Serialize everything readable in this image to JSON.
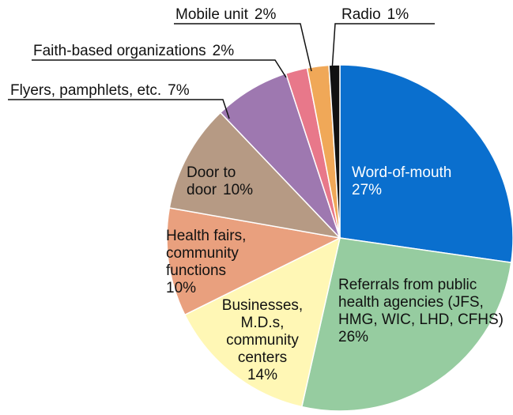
{
  "chart_data": {
    "type": "pie",
    "categories": [
      "Word-of-mouth",
      "Referrals from public health agencies (JFS, HMG, WIC, LHD, CFHS)",
      "Businesses, M.D.s, community centers",
      "Health fairs, community functions",
      "Door to door",
      "Flyers, pamphlets, etc.",
      "Faith-based organizations",
      "Mobile unit",
      "Radio"
    ],
    "values": [
      27,
      26,
      14,
      10,
      10,
      7,
      2,
      2,
      1
    ],
    "value_labels": [
      "27%",
      "26%",
      "14%",
      "10%",
      "10%",
      "7%",
      "2%",
      "2%",
      "1%"
    ],
    "colors": [
      "#0a6fce",
      "#96cca0",
      "#fff7b5",
      "#e9a07e",
      "#b69a84",
      "#9e78b0",
      "#e8788a",
      "#f0a858",
      "#111111"
    ]
  }
}
